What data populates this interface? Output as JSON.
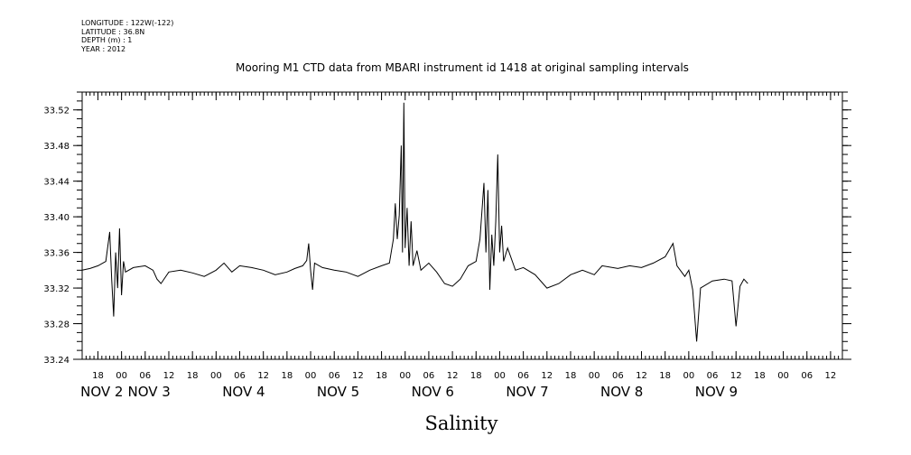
{
  "meta": {
    "longitude": "LONGITUDE : 122W(-122)",
    "latitude": "LATITUDE : 36.8N",
    "depth": "DEPTH (m) : 1",
    "year": "YEAR : 2012"
  },
  "chart_data": {
    "type": "line",
    "title": "Mooring M1 CTD data from MBARI instrument id 1418 at original sampling intervals",
    "xlabel": "Salinity",
    "ylabel": "",
    "xlim": [
      "2012-11-01T14:00",
      "2012-11-09T15:00"
    ],
    "ylim": [
      33.24,
      33.54
    ],
    "y_ticks": [
      "33.24",
      "33.28",
      "33.32",
      "33.36",
      "33.40",
      "33.44",
      "33.48",
      "33.52"
    ],
    "x_hour_ticks": [
      {
        "t": "2012-11-01T18:00",
        "label": "18"
      },
      {
        "t": "2012-11-02T00:00",
        "label": "00"
      },
      {
        "t": "2012-11-02T06:00",
        "label": "06"
      },
      {
        "t": "2012-11-02T12:00",
        "label": "12"
      },
      {
        "t": "2012-11-02T18:00",
        "label": "18"
      },
      {
        "t": "2012-11-03T00:00",
        "label": "00"
      },
      {
        "t": "2012-11-03T06:00",
        "label": "06"
      },
      {
        "t": "2012-11-03T12:00",
        "label": "12"
      },
      {
        "t": "2012-11-03T18:00",
        "label": "18"
      },
      {
        "t": "2012-11-04T00:00",
        "label": "00"
      },
      {
        "t": "2012-11-04T06:00",
        "label": "06"
      },
      {
        "t": "2012-11-04T12:00",
        "label": "12"
      },
      {
        "t": "2012-11-04T18:00",
        "label": "18"
      },
      {
        "t": "2012-11-05T00:00",
        "label": "00"
      },
      {
        "t": "2012-11-05T06:00",
        "label": "06"
      },
      {
        "t": "2012-11-05T12:00",
        "label": "12"
      },
      {
        "t": "2012-11-05T18:00",
        "label": "18"
      },
      {
        "t": "2012-11-06T00:00",
        "label": "00"
      },
      {
        "t": "2012-11-06T06:00",
        "label": "06"
      },
      {
        "t": "2012-11-06T12:00",
        "label": "12"
      },
      {
        "t": "2012-11-06T18:00",
        "label": "18"
      },
      {
        "t": "2012-11-07T00:00",
        "label": "00"
      },
      {
        "t": "2012-11-07T06:00",
        "label": "06"
      },
      {
        "t": "2012-11-07T12:00",
        "label": "12"
      },
      {
        "t": "2012-11-07T18:00",
        "label": "18"
      },
      {
        "t": "2012-11-08T00:00",
        "label": "00"
      },
      {
        "t": "2012-11-08T06:00",
        "label": "06"
      },
      {
        "t": "2012-11-08T12:00",
        "label": "12"
      },
      {
        "t": "2012-11-08T18:00",
        "label": "18"
      },
      {
        "t": "2012-11-09T00:00",
        "label": "00"
      },
      {
        "t": "2012-11-09T06:00",
        "label": "06"
      },
      {
        "t": "2012-11-09T12:00",
        "label": "12"
      }
    ],
    "x_date_labels": [
      {
        "t": "2012-11-01T19:00",
        "label": "NOV  2"
      },
      {
        "t": "2012-11-02T07:00",
        "label": "NOV  3"
      },
      {
        "t": "2012-11-03T07:00",
        "label": "NOV  4"
      },
      {
        "t": "2012-11-04T07:00",
        "label": "NOV  5"
      },
      {
        "t": "2012-11-05T07:00",
        "label": "NOV  6"
      },
      {
        "t": "2012-11-06T07:00",
        "label": "NOV  7"
      },
      {
        "t": "2012-11-07T07:00",
        "label": "NOV  8"
      },
      {
        "t": "2012-11-08T07:00",
        "label": "NOV  9"
      }
    ],
    "grid": false,
    "series": [
      {
        "color": "#000000",
        "points": [
          [
            "2012-11-01T14:00",
            33.34
          ],
          [
            "2012-11-01T16:00",
            33.342
          ],
          [
            "2012-11-01T18:00",
            33.345
          ],
          [
            "2012-11-01T20:00",
            33.35
          ],
          [
            "2012-11-01T21:00",
            33.383
          ],
          [
            "2012-11-01T21:30",
            33.33
          ],
          [
            "2012-11-01T22:00",
            33.288
          ],
          [
            "2012-11-01T22:30",
            33.36
          ],
          [
            "2012-11-01T23:00",
            33.32
          ],
          [
            "2012-11-01T23:30",
            33.387
          ],
          [
            "2012-11-02T00:00",
            33.312
          ],
          [
            "2012-11-02T00:30",
            33.35
          ],
          [
            "2012-11-02T01:00",
            33.338
          ],
          [
            "2012-11-02T03:00",
            33.343
          ],
          [
            "2012-11-02T06:00",
            33.345
          ],
          [
            "2012-11-02T08:00",
            33.34
          ],
          [
            "2012-11-02T09:00",
            33.33
          ],
          [
            "2012-11-02T10:00",
            33.325
          ],
          [
            "2012-11-02T12:00",
            33.338
          ],
          [
            "2012-11-02T15:00",
            33.34
          ],
          [
            "2012-11-02T18:00",
            33.337
          ],
          [
            "2012-11-02T21:00",
            33.333
          ],
          [
            "2012-11-03T00:00",
            33.34
          ],
          [
            "2012-11-03T02:00",
            33.348
          ],
          [
            "2012-11-03T04:00",
            33.338
          ],
          [
            "2012-11-03T06:00",
            33.345
          ],
          [
            "2012-11-03T09:00",
            33.343
          ],
          [
            "2012-11-03T12:00",
            33.34
          ],
          [
            "2012-11-03T15:00",
            33.335
          ],
          [
            "2012-11-03T18:00",
            33.338
          ],
          [
            "2012-11-03T20:00",
            33.342
          ],
          [
            "2012-11-03T22:00",
            33.345
          ],
          [
            "2012-11-03T23:00",
            33.351
          ],
          [
            "2012-11-03T23:30",
            33.37
          ],
          [
            "2012-11-04T00:00",
            33.34
          ],
          [
            "2012-11-04T00:30",
            33.318
          ],
          [
            "2012-11-04T01:00",
            33.348
          ],
          [
            "2012-11-04T03:00",
            33.343
          ],
          [
            "2012-11-04T06:00",
            33.34
          ],
          [
            "2012-11-04T09:00",
            33.338
          ],
          [
            "2012-11-04T12:00",
            33.333
          ],
          [
            "2012-11-04T15:00",
            33.34
          ],
          [
            "2012-11-04T18:00",
            33.345
          ],
          [
            "2012-11-04T20:00",
            33.348
          ],
          [
            "2012-11-04T21:00",
            33.375
          ],
          [
            "2012-11-04T21:30",
            33.415
          ],
          [
            "2012-11-04T22:00",
            33.375
          ],
          [
            "2012-11-04T22:30",
            33.402
          ],
          [
            "2012-11-04T23:00",
            33.48
          ],
          [
            "2012-11-04T23:20",
            33.36
          ],
          [
            "2012-11-04T23:40",
            33.528
          ],
          [
            "2012-11-05T00:00",
            33.365
          ],
          [
            "2012-11-05T00:30",
            33.41
          ],
          [
            "2012-11-05T01:00",
            33.345
          ],
          [
            "2012-11-05T01:30",
            33.395
          ],
          [
            "2012-11-05T02:00",
            33.345
          ],
          [
            "2012-11-05T03:00",
            33.362
          ],
          [
            "2012-11-05T04:00",
            33.34
          ],
          [
            "2012-11-05T06:00",
            33.348
          ],
          [
            "2012-11-05T08:00",
            33.338
          ],
          [
            "2012-11-05T10:00",
            33.325
          ],
          [
            "2012-11-05T12:00",
            33.322
          ],
          [
            "2012-11-05T14:00",
            33.33
          ],
          [
            "2012-11-05T16:00",
            33.345
          ],
          [
            "2012-11-05T18:00",
            33.35
          ],
          [
            "2012-11-05T19:00",
            33.375
          ],
          [
            "2012-11-05T20:00",
            33.438
          ],
          [
            "2012-11-05T20:30",
            33.36
          ],
          [
            "2012-11-05T21:00",
            33.43
          ],
          [
            "2012-11-05T21:30",
            33.318
          ],
          [
            "2012-11-05T22:00",
            33.38
          ],
          [
            "2012-11-05T22:30",
            33.345
          ],
          [
            "2012-11-05T23:00",
            33.395
          ],
          [
            "2012-11-05T23:30",
            33.47
          ],
          [
            "2012-11-06T00:00",
            33.36
          ],
          [
            "2012-11-06T00:30",
            33.39
          ],
          [
            "2012-11-06T01:00",
            33.35
          ],
          [
            "2012-11-06T02:00",
            33.365
          ],
          [
            "2012-11-06T04:00",
            33.34
          ],
          [
            "2012-11-06T06:00",
            33.343
          ],
          [
            "2012-11-06T09:00",
            33.335
          ],
          [
            "2012-11-06T12:00",
            33.32
          ],
          [
            "2012-11-06T15:00",
            33.325
          ],
          [
            "2012-11-06T18:00",
            33.335
          ],
          [
            "2012-11-06T21:00",
            33.34
          ],
          [
            "2012-11-07T00:00",
            33.335
          ],
          [
            "2012-11-07T02:00",
            33.345
          ],
          [
            "2012-11-07T06:00",
            33.342
          ],
          [
            "2012-11-07T09:00",
            33.345
          ],
          [
            "2012-11-07T12:00",
            33.343
          ],
          [
            "2012-11-07T15:00",
            33.348
          ],
          [
            "2012-11-07T18:00",
            33.355
          ],
          [
            "2012-11-07T20:00",
            33.37
          ],
          [
            "2012-11-07T21:00",
            33.345
          ],
          [
            "2012-11-07T23:00",
            33.333
          ],
          [
            "2012-11-08T00:00",
            33.34
          ],
          [
            "2012-11-08T01:00",
            33.318
          ],
          [
            "2012-11-08T02:00",
            33.26
          ],
          [
            "2012-11-08T03:00",
            33.32
          ],
          [
            "2012-11-08T06:00",
            33.328
          ],
          [
            "2012-11-08T09:00",
            33.33
          ],
          [
            "2012-11-08T11:00",
            33.328
          ],
          [
            "2012-11-08T12:00",
            33.277
          ],
          [
            "2012-11-08T13:00",
            33.322
          ],
          [
            "2012-11-08T14:00",
            33.33
          ],
          [
            "2012-11-08T15:00",
            33.325
          ]
        ]
      }
    ]
  }
}
